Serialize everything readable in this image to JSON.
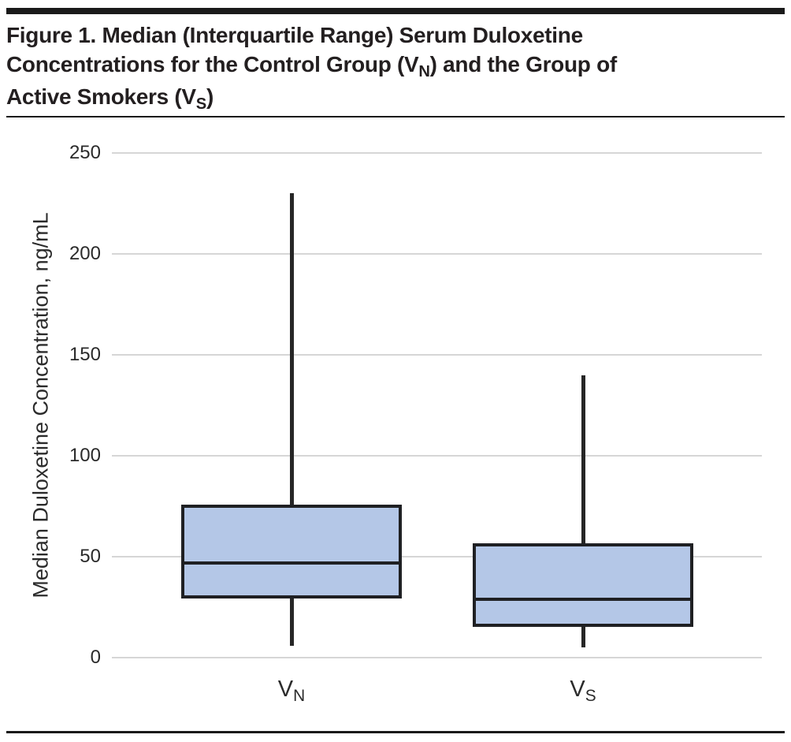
{
  "figure": {
    "title": {
      "full": "Figure 1. Median (Interquartile Range) Serum Duloxetine Concentrations for the Control Group (VN) and the Group of Active Smokers (VS)",
      "line1": "Figure 1. Median (Interquartile Range) Serum Duloxetine",
      "line2_pre": "Concentrations for the Control Group (V",
      "line2_sub": "N",
      "line2_post": ") and the Group of",
      "line3_pre": "Active Smokers (V",
      "line3_sub": "S",
      "line3_post": ")"
    }
  },
  "chart_data": {
    "type": "box",
    "title": "Figure 1. Median (Interquartile Range) Serum Duloxetine Concentrations for the Control Group (VN) and the Group of Active Smokers (VS)",
    "xlabel": "",
    "ylabel": "Median Duloxetine Concentration, ng/mL",
    "unit": "ng/mL",
    "ylim": [
      0,
      250
    ],
    "yticks": [
      0,
      50,
      100,
      150,
      200,
      250
    ],
    "grid": "horizontal",
    "legend": "none",
    "categories": [
      {
        "base": "V",
        "sub": "N",
        "group": "Control Group"
      },
      {
        "base": "V",
        "sub": "S",
        "group": "Active Smokers"
      }
    ],
    "series": [
      {
        "name": "VN",
        "whisker_low": 6,
        "q1": 30,
        "median": 47,
        "q3": 75,
        "whisker_high": 230
      },
      {
        "name": "VS",
        "whisker_low": 5,
        "q1": 16,
        "median": 29,
        "q3": 56,
        "whisker_high": 140
      }
    ]
  },
  "colors": {
    "box_fill": "#b4c7e7",
    "box_border": "#1f2023",
    "median_line": "#1f2023",
    "whisker": "#262626",
    "gridline": "#d6d6d6",
    "rule": "#1a1a1a",
    "title_text": "#231f20",
    "axis_text": "#2b2b2b"
  }
}
